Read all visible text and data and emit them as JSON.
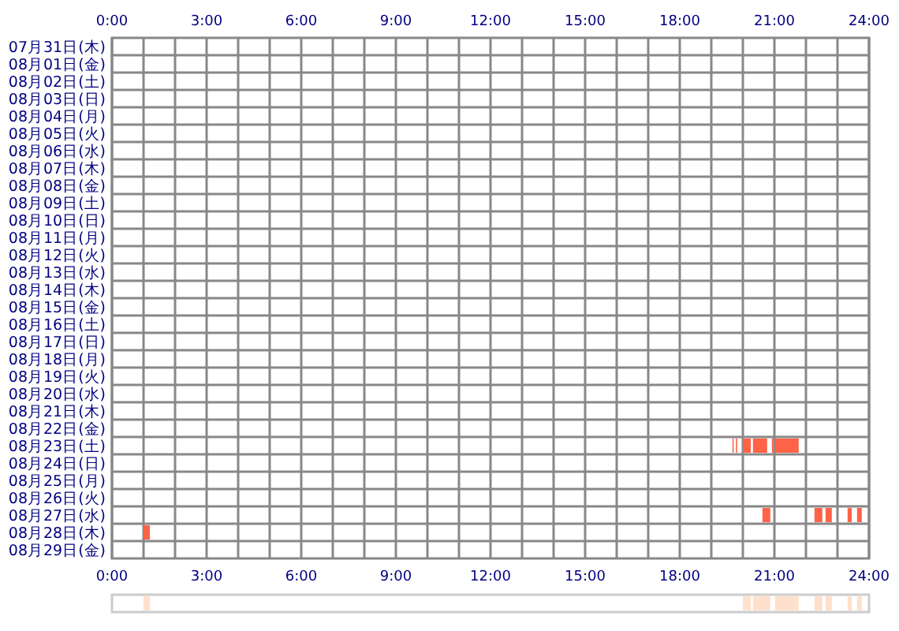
{
  "chart_data": [
    {
      "type": "bar",
      "orientation": "horizontal",
      "grid": true,
      "categories": [
        "07月31日(木)",
        "08月01日(金)",
        "08月02日(土)",
        "08月03日(日)",
        "08月04日(月)",
        "08月05日(火)",
        "08月06日(水)",
        "08月07日(木)",
        "08月08日(金)",
        "08月09日(土)",
        "08月10日(日)",
        "08月11日(月)",
        "08月12日(火)",
        "08月13日(水)",
        "08月14日(木)",
        "08月15日(金)",
        "08月16日(土)",
        "08月17日(日)",
        "08月18日(月)",
        "08月19日(火)",
        "08月20日(水)",
        "08月21日(木)",
        "08月22日(金)",
        "08月23日(土)",
        "08月24日(日)",
        "08月25日(月)",
        "08月26日(火)",
        "08月27日(水)",
        "08月28日(木)",
        "08月29日(金)"
      ],
      "xlim": [
        0,
        24
      ],
      "xticks": [
        {
          "value": 0,
          "label": "0:00"
        },
        {
          "value": 1,
          "label": null
        },
        {
          "value": 2,
          "label": null
        },
        {
          "value": 3,
          "label": "3:00"
        },
        {
          "value": 4,
          "label": null
        },
        {
          "value": 5,
          "label": null
        },
        {
          "value": 6,
          "label": "6:00"
        },
        {
          "value": 7,
          "label": null
        },
        {
          "value": 8,
          "label": null
        },
        {
          "value": 9,
          "label": "9:00"
        },
        {
          "value": 10,
          "label": null
        },
        {
          "value": 11,
          "label": null
        },
        {
          "value": 12,
          "label": "12:00"
        },
        {
          "value": 13,
          "label": null
        },
        {
          "value": 14,
          "label": null
        },
        {
          "value": 15,
          "label": "15:00"
        },
        {
          "value": 16,
          "label": null
        },
        {
          "value": 17,
          "label": null
        },
        {
          "value": 18,
          "label": "18:00"
        },
        {
          "value": 19,
          "label": null
        },
        {
          "value": 20,
          "label": null
        },
        {
          "value": 21,
          "label": "21:00"
        },
        {
          "value": 22,
          "label": null
        },
        {
          "value": 23,
          "label": null
        },
        {
          "value": 24,
          "label": "24:00"
        }
      ],
      "x2lim": [
        0,
        24
      ],
      "x2ticks": [
        {
          "value": 0,
          "label": "0:00"
        },
        {
          "value": 1,
          "label": null
        },
        {
          "value": 2,
          "label": null
        },
        {
          "value": 3,
          "label": "3:00"
        },
        {
          "value": 4,
          "label": null
        },
        {
          "value": 5,
          "label": null
        },
        {
          "value": 6,
          "label": "6:00"
        },
        {
          "value": 7,
          "label": null
        },
        {
          "value": 8,
          "label": null
        },
        {
          "value": 9,
          "label": "9:00"
        },
        {
          "value": 10,
          "label": null
        },
        {
          "value": 11,
          "label": null
        },
        {
          "value": 12,
          "label": "12:00"
        },
        {
          "value": 13,
          "label": null
        },
        {
          "value": 14,
          "label": null
        },
        {
          "value": 15,
          "label": "15:00"
        },
        {
          "value": 16,
          "label": null
        },
        {
          "value": 17,
          "label": null
        },
        {
          "value": 18,
          "label": "18:00"
        },
        {
          "value": 19,
          "label": null
        },
        {
          "value": 20,
          "label": null
        },
        {
          "value": 21,
          "label": "21:00"
        },
        {
          "value": 22,
          "label": null
        },
        {
          "value": 23,
          "label": null
        },
        {
          "value": 24,
          "label": "24:00"
        }
      ],
      "series": [
        {
          "color": "#ff6347",
          "base": [
            null,
            null,
            null,
            null,
            null,
            null,
            null,
            null,
            null,
            null,
            null,
            null,
            null,
            null,
            null,
            null,
            null,
            null,
            null,
            null,
            null,
            null,
            null,
            19.67,
            null,
            null,
            null,
            20.62,
            1.0,
            null
          ],
          "values": [
            null,
            null,
            null,
            null,
            null,
            null,
            null,
            null,
            null,
            null,
            null,
            null,
            null,
            null,
            null,
            null,
            null,
            null,
            null,
            null,
            null,
            null,
            null,
            0.03,
            null,
            null,
            null,
            0.25,
            0.2,
            null
          ]
        },
        {
          "color": "#ff6347",
          "base": [
            null,
            null,
            null,
            null,
            null,
            null,
            null,
            null,
            null,
            null,
            null,
            null,
            null,
            null,
            null,
            null,
            null,
            null,
            null,
            null,
            null,
            null,
            null,
            19.78,
            null,
            null,
            null,
            22.27,
            null,
            null
          ],
          "values": [
            null,
            null,
            null,
            null,
            null,
            null,
            null,
            null,
            null,
            null,
            null,
            null,
            null,
            null,
            null,
            null,
            null,
            null,
            null,
            null,
            null,
            null,
            null,
            0.04,
            null,
            null,
            null,
            0.25,
            null,
            null
          ]
        },
        {
          "color": "#ff6347",
          "base": [
            null,
            null,
            null,
            null,
            null,
            null,
            null,
            null,
            null,
            null,
            null,
            null,
            null,
            null,
            null,
            null,
            null,
            null,
            null,
            null,
            null,
            null,
            null,
            20.0,
            null,
            null,
            null,
            22.62,
            null,
            null
          ],
          "values": [
            null,
            null,
            null,
            null,
            null,
            null,
            null,
            null,
            null,
            null,
            null,
            null,
            null,
            null,
            null,
            null,
            null,
            null,
            null,
            null,
            null,
            null,
            null,
            0.25,
            null,
            null,
            null,
            0.2,
            null,
            null
          ]
        },
        {
          "color": "#ff6347",
          "base": [
            null,
            null,
            null,
            null,
            null,
            null,
            null,
            null,
            null,
            null,
            null,
            null,
            null,
            null,
            null,
            null,
            null,
            null,
            null,
            null,
            null,
            null,
            null,
            20.32,
            null,
            null,
            null,
            23.32,
            null,
            null
          ],
          "values": [
            null,
            null,
            null,
            null,
            null,
            null,
            null,
            null,
            null,
            null,
            null,
            null,
            null,
            null,
            null,
            null,
            null,
            null,
            null,
            null,
            null,
            null,
            null,
            0.45,
            null,
            null,
            null,
            0.13,
            null,
            null
          ]
        },
        {
          "color": "#ff6347",
          "base": [
            null,
            null,
            null,
            null,
            null,
            null,
            null,
            null,
            null,
            null,
            null,
            null,
            null,
            null,
            null,
            null,
            null,
            null,
            null,
            null,
            null,
            null,
            null,
            20.92,
            null,
            null,
            null,
            23.62,
            null,
            null
          ],
          "values": [
            null,
            null,
            null,
            null,
            null,
            null,
            null,
            null,
            null,
            null,
            null,
            null,
            null,
            null,
            null,
            null,
            null,
            null,
            null,
            null,
            null,
            null,
            null,
            0.05,
            null,
            null,
            null,
            0.15,
            null,
            null
          ]
        },
        {
          "color": "#ff6347",
          "base": [
            null,
            null,
            null,
            null,
            null,
            null,
            null,
            null,
            null,
            null,
            null,
            null,
            null,
            null,
            null,
            null,
            null,
            null,
            null,
            null,
            null,
            null,
            null,
            21.02,
            null,
            null,
            null,
            null,
            null,
            null
          ],
          "values": [
            null,
            null,
            null,
            null,
            null,
            null,
            null,
            null,
            null,
            null,
            null,
            null,
            null,
            null,
            null,
            null,
            null,
            null,
            null,
            null,
            null,
            null,
            null,
            0.75,
            null,
            null,
            null,
            null,
            null,
            null
          ]
        }
      ]
    },
    {
      "type": "bar",
      "orientation": "horizontal",
      "categories": [
        null
      ],
      "xlim": [
        0,
        24
      ],
      "series": [
        {
          "color": "#ffe0cc",
          "base": [
            1.0
          ],
          "values": [
            0.2
          ]
        },
        {
          "color": "#ffe0cc",
          "base": [
            20.0
          ],
          "values": [
            0.25
          ]
        },
        {
          "color": "#ffe0cc",
          "base": [
            20.32
          ],
          "values": [
            0.45
          ]
        },
        {
          "color": "#ffe0cc",
          "base": [
            20.62
          ],
          "values": [
            0.25
          ]
        },
        {
          "color": "#ffe0cc",
          "base": [
            21.02
          ],
          "values": [
            0.75
          ]
        },
        {
          "color": "#ffe0cc",
          "base": [
            22.27
          ],
          "values": [
            0.25
          ]
        },
        {
          "color": "#ffe0cc",
          "base": [
            22.62
          ],
          "values": [
            0.2
          ]
        },
        {
          "color": "#ffe0cc",
          "base": [
            23.32
          ],
          "values": [
            0.13
          ]
        },
        {
          "color": "#ffe0cc",
          "base": [
            23.62
          ],
          "values": [
            0.15
          ]
        }
      ]
    }
  ]
}
